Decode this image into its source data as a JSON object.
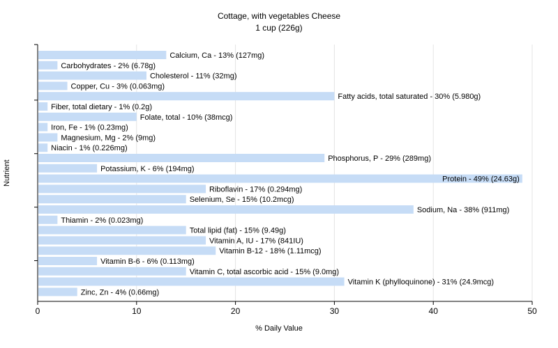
{
  "chart_data": {
    "type": "bar",
    "orientation": "horizontal",
    "title": "Cottage, with vegetables Cheese",
    "subtitle": "1 cup (226g)",
    "xlabel": "% Daily Value",
    "ylabel": "Nutrient",
    "xlim": [
      0,
      50
    ],
    "xticks": [
      0,
      10,
      20,
      30,
      40,
      50
    ],
    "grid": true,
    "bar_color": "#c6dcf6",
    "categories": [
      "Calcium, Ca",
      "Carbohydrates",
      "Cholesterol",
      "Copper, Cu",
      "Fatty acids, total saturated",
      "Fiber, total dietary",
      "Folate, total",
      "Iron, Fe",
      "Magnesium, Mg",
      "Niacin",
      "Phosphorus, P",
      "Potassium, K",
      "Protein",
      "Riboflavin",
      "Selenium, Se",
      "Sodium, Na",
      "Thiamin",
      "Total lipid (fat)",
      "Vitamin A, IU",
      "Vitamin B-12",
      "Vitamin B-6",
      "Vitamin C, total ascorbic acid",
      "Vitamin K (phylloquinone)",
      "Zinc, Zn"
    ],
    "values": [
      13,
      2,
      11,
      3,
      30,
      1,
      10,
      1,
      2,
      1,
      29,
      6,
      49,
      17,
      15,
      38,
      2,
      15,
      17,
      18,
      6,
      15,
      31,
      4
    ],
    "labels": [
      "Calcium, Ca - 13% (127mg)",
      "Carbohydrates - 2% (6.78g)",
      "Cholesterol - 11% (32mg)",
      "Copper, Cu - 3% (0.063mg)",
      "Fatty acids, total saturated - 30% (5.980g)",
      "Fiber, total dietary - 1% (0.2g)",
      "Folate, total - 10% (38mcg)",
      "Iron, Fe - 1% (0.23mg)",
      "Magnesium, Mg - 2% (9mg)",
      "Niacin - 1% (0.226mg)",
      "Phosphorus, P - 29% (289mg)",
      "Potassium, K - 6% (194mg)",
      "Protein - 49% (24.63g)",
      "Riboflavin - 17% (0.294mg)",
      "Selenium, Se - 15% (10.2mcg)",
      "Sodium, Na - 38% (911mg)",
      "Thiamin - 2% (0.023mg)",
      "Total lipid (fat) - 15% (9.49g)",
      "Vitamin A, IU - 17% (841IU)",
      "Vitamin B-12 - 18% (1.11mcg)",
      "Vitamin B-6 - 6% (0.113mg)",
      "Vitamin C, total ascorbic acid - 15% (9.0mg)",
      "Vitamin K (phylloquinone) - 31% (24.9mcg)",
      "Zinc, Zn - 4% (0.66mg)"
    ]
  }
}
